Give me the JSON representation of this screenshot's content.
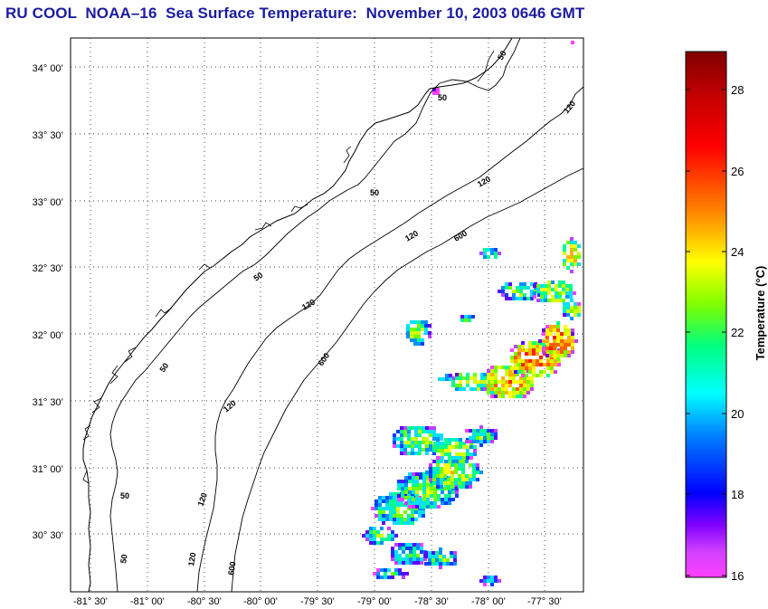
{
  "title": "RU COOL  NOAA–16  Sea Surface Temperature:  November 10, 2003 0646 GMT",
  "map": {
    "latitude_labels": [
      "34° 00’",
      "33° 30’",
      "33° 00’",
      "32° 30’",
      "32° 00’",
      "31° 30’",
      "31° 00’",
      "30° 30’"
    ],
    "longitude_labels": [
      "-81° 30’",
      "-81° 00’",
      "-80° 30’",
      "-80° 00’",
      "-79° 30’",
      "-79° 00’",
      "-78° 30’",
      "-78° 00’",
      "-77° 30’"
    ],
    "contour_labels": [
      "50",
      "50",
      "50",
      "50",
      "50",
      "50",
      "50",
      "120",
      "120",
      "120",
      "120",
      "120",
      "120",
      "120",
      "600",
      "600",
      "600"
    ],
    "grid": "dotted"
  },
  "colorbar": {
    "title": "Temperature (°C)",
    "tick_labels": [
      "28",
      "26",
      "24",
      "22",
      "20",
      "18",
      "16"
    ],
    "range": [
      16,
      29
    ],
    "colors": [
      "#ff40ff",
      "#8000ff",
      "#0000ff",
      "#0080ff",
      "#00ffff",
      "#00ff80",
      "#80ff00",
      "#ffff00",
      "#ff8000",
      "#ff0000",
      "#800000"
    ]
  },
  "colors": {
    "title": "#1c1ca0",
    "coastline": "#000000",
    "background": "#ffffff"
  }
}
